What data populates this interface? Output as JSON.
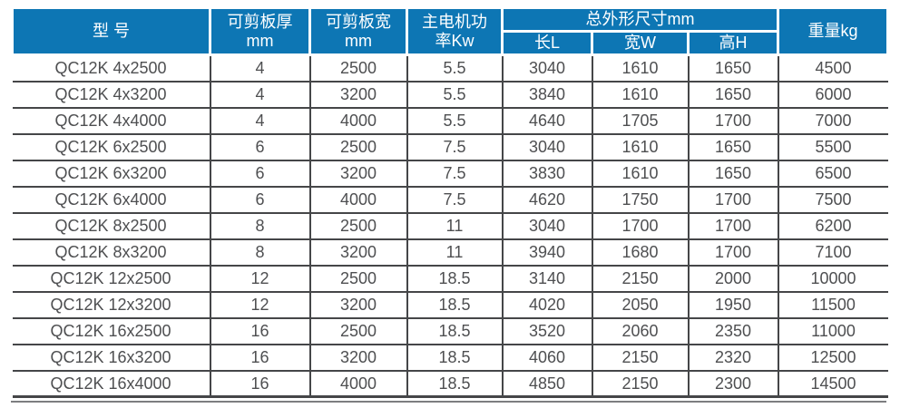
{
  "table": {
    "title": "QC12K shearing machine specification table",
    "colors": {
      "header_bg": "#0d76b4",
      "header_text": "#ffffff",
      "body_text": "#4e4f51",
      "grid_line": "#454648"
    },
    "header": {
      "model": "型 号",
      "thickness_label": "可剪板厚",
      "thickness_unit": "mm",
      "width_label": "可剪板宽",
      "width_unit": "mm",
      "power_line1": "主电机功",
      "power_line2": "率Kw",
      "dims_label": "总外形尺寸mm",
      "dim_length": "长L",
      "dim_width": "宽W",
      "dim_height": "高H",
      "weight_label": "重量kg"
    },
    "rows": [
      [
        "QC12K 4x2500",
        "4",
        "2500",
        "5.5",
        "3040",
        "1610",
        "1650",
        "4500"
      ],
      [
        "QC12K 4x3200",
        "4",
        "3200",
        "5.5",
        "3840",
        "1610",
        "1650",
        "6000"
      ],
      [
        "QC12K 4x4000",
        "4",
        "4000",
        "5.5",
        "4640",
        "1705",
        "1700",
        "7000"
      ],
      [
        "QC12K 6x2500",
        "6",
        "2500",
        "7.5",
        "3040",
        "1610",
        "1650",
        "5500"
      ],
      [
        "QC12K 6x3200",
        "6",
        "3200",
        "7.5",
        "3830",
        "1610",
        "1650",
        "6500"
      ],
      [
        "QC12K 6x4000",
        "6",
        "4000",
        "7.5",
        "4620",
        "1750",
        "1700",
        "7500"
      ],
      [
        "QC12K 8x2500",
        "8",
        "2500",
        "11",
        "3040",
        "1700",
        "1700",
        "6200"
      ],
      [
        "QC12K 8x3200",
        "8",
        "3200",
        "11",
        "3940",
        "1680",
        "1700",
        "7100"
      ],
      [
        "QC12K 12x2500",
        "12",
        "2500",
        "18.5",
        "3140",
        "2150",
        "2000",
        "10000"
      ],
      [
        "QC12K 12x3200",
        "12",
        "3200",
        "18.5",
        "4020",
        "2050",
        "1950",
        "11500"
      ],
      [
        "QC12K 16x2500",
        "16",
        "2500",
        "18.5",
        "3520",
        "2060",
        "2350",
        "11000"
      ],
      [
        "QC12K 16x3200",
        "16",
        "3200",
        "18.5",
        "4060",
        "2150",
        "2320",
        "12500"
      ],
      [
        "QC12K 16x4000",
        "16",
        "4000",
        "18.5",
        "4850",
        "2150",
        "2300",
        "14500"
      ]
    ]
  }
}
